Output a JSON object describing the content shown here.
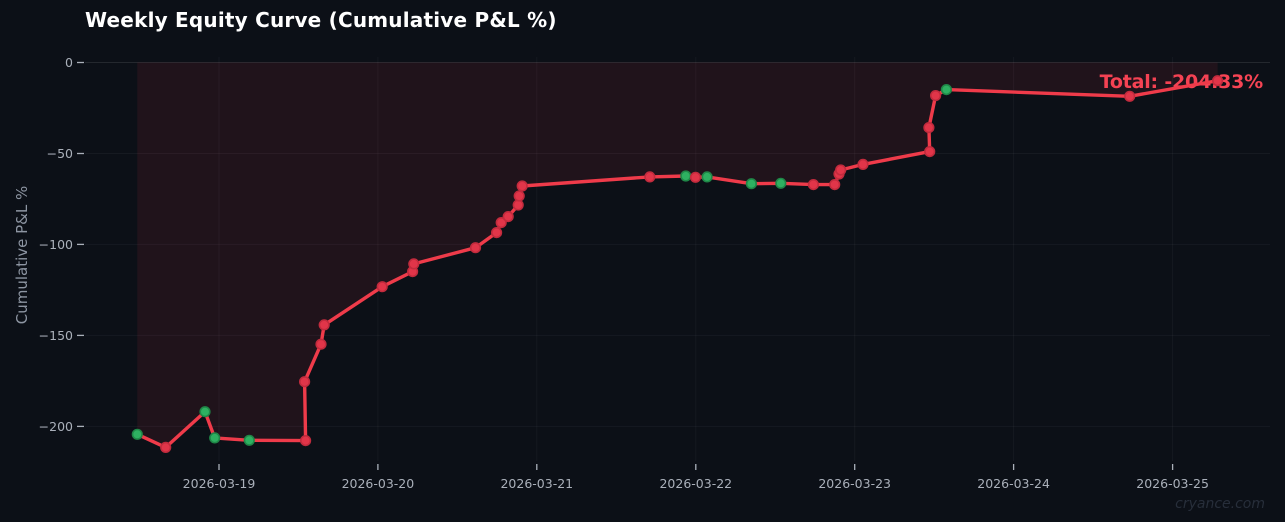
{
  "page": {
    "background": "#0c1017",
    "watermark": "cryance.com"
  },
  "chart_data": {
    "type": "line",
    "title": "Weekly Equity Curve (Cumulative P&L %)",
    "xlabel": "",
    "ylabel": "Cumulative P&L %",
    "annotation": {
      "label": "Total: -204.33%",
      "color": "#f64454"
    },
    "x_unit": "days since 2026-03-19 00:00",
    "x_tick_days": [
      0,
      1,
      2,
      3,
      4,
      5,
      6
    ],
    "x_tick_labels": [
      "2026-03-19",
      "2026-03-20",
      "2026-03-21",
      "2026-03-22",
      "2026-03-23",
      "2026-03-24",
      "2026-03-25"
    ],
    "y_ticks": [
      0,
      -50,
      -100,
      -150,
      -200
    ],
    "y_tick_labels": [
      "0",
      "−50",
      "−100",
      "−150",
      "−200"
    ],
    "xlim_days": [
      -0.843,
      6.613
    ],
    "ylim": [
      -219,
      3
    ],
    "grid": true,
    "legend": null,
    "line_color": "#ef3b4a",
    "fill_opacity": 0.09,
    "marker_colors": {
      "red": "#e13549",
      "green": "#2eb061"
    },
    "marker_edge_colors": {
      "red": "#c22b3d",
      "green": "#1f8747"
    },
    "tick_color": "#aab0ba",
    "points": [
      [
        -0.514,
        -204.33,
        "g"
      ],
      [
        -0.335,
        -211.5,
        "r"
      ],
      [
        -0.088,
        -191.9,
        "g"
      ],
      [
        -0.027,
        -206.3,
        "g"
      ],
      [
        0.191,
        -207.6,
        "g"
      ],
      [
        0.545,
        -207.8,
        "r"
      ],
      [
        0.539,
        -175.4,
        "r"
      ],
      [
        0.642,
        -154.8,
        "r"
      ],
      [
        0.662,
        -144.2,
        "r"
      ],
      [
        1.027,
        -123.2,
        "r"
      ],
      [
        1.218,
        -114.9,
        "r"
      ],
      [
        1.226,
        -110.7,
        "r"
      ],
      [
        1.614,
        -101.8,
        "r"
      ],
      [
        1.747,
        -93.5,
        "r"
      ],
      [
        1.776,
        -88.0,
        "r"
      ],
      [
        1.82,
        -84.7,
        "r"
      ],
      [
        1.883,
        -78.3,
        "r"
      ],
      [
        1.889,
        -73.4,
        "r"
      ],
      [
        1.908,
        -67.9,
        "r"
      ],
      [
        2.711,
        -62.9,
        "r"
      ],
      [
        2.937,
        -62.4,
        "g"
      ],
      [
        2.998,
        -63.1,
        "r"
      ],
      [
        3.071,
        -62.9,
        "g"
      ],
      [
        3.35,
        -66.6,
        "g"
      ],
      [
        3.535,
        -66.4,
        "g"
      ],
      [
        3.74,
        -67.1,
        "r"
      ],
      [
        3.874,
        -67.1,
        "r"
      ],
      [
        3.901,
        -61.3,
        "r"
      ],
      [
        3.912,
        -59.1,
        "r"
      ],
      [
        4.052,
        -56.0,
        "r"
      ],
      [
        4.472,
        -49.0,
        "r"
      ],
      [
        4.467,
        -35.8,
        "r"
      ],
      [
        4.509,
        -18.2,
        "r"
      ],
      [
        4.577,
        -14.9,
        "g"
      ],
      [
        5.73,
        -18.6,
        "r"
      ],
      [
        6.283,
        -10.0,
        "r"
      ]
    ]
  }
}
